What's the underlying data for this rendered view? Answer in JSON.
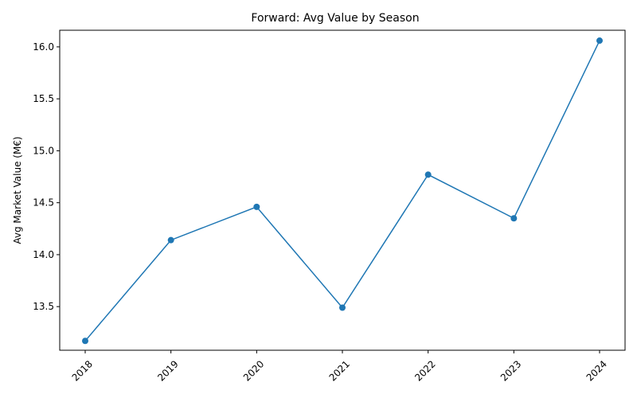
{
  "chart_data": {
    "type": "line",
    "title": "Forward: Avg Value by Season",
    "xlabel": "",
    "ylabel": "Avg Market Value (M€)",
    "categories": [
      "2018",
      "2019",
      "2020",
      "2021",
      "2022",
      "2023",
      "2024"
    ],
    "series": [
      {
        "values": [
          13.17,
          14.14,
          14.46,
          13.49,
          14.77,
          14.35,
          16.06
        ],
        "color": "#1f77b4",
        "marker": "circle"
      }
    ],
    "yticks": [
      "13.5",
      "14.0",
      "14.5",
      "15.0",
      "15.5",
      "16.0"
    ],
    "ylim": [
      13.08,
      16.16
    ],
    "grid": false,
    "legend": "none"
  }
}
